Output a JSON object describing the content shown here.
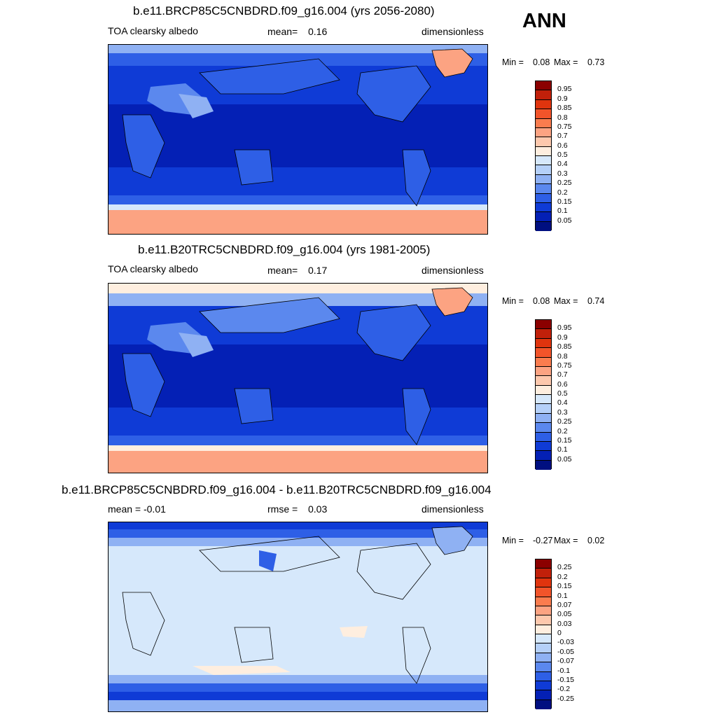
{
  "season": "ANN",
  "panels": [
    {
      "title": "b.e11.BRCP85C5CNBDRD.f09_g16.004 (yrs 2056-2080)",
      "left": "TOA clearsky albedo",
      "center_label": "mean=",
      "center_value": "0.16",
      "right": "dimensionless",
      "min_label": "Min =",
      "min_value": "0.08",
      "max_label": "Max =",
      "max_value": "0.73",
      "colorbar": {
        "labels": [
          "0.95",
          "0.9",
          "0.85",
          "0.8",
          "0.75",
          "0.7",
          "0.6",
          "0.5",
          "0.4",
          "0.3",
          "0.25",
          "0.2",
          "0.15",
          "0.1",
          "0.05"
        ],
        "colors": [
          "#8b0000",
          "#c1200a",
          "#e0340e",
          "#f2542a",
          "#fa7c4e",
          "#fca382",
          "#fdc8ad",
          "#feeedf",
          "#d6e8fb",
          "#b5d0f8",
          "#8fb1f3",
          "#5b88ee",
          "#2e5fe6",
          "#0f3bd6",
          "#0420b5",
          "#000f80"
        ]
      }
    },
    {
      "title": "b.e11.B20TRC5CNBDRD.f09_g16.004 (yrs 1981-2005)",
      "left": "TOA clearsky albedo",
      "center_label": "mean=",
      "center_value": "0.17",
      "right": "dimensionless",
      "min_label": "Min =",
      "min_value": "0.08",
      "max_label": "Max =",
      "max_value": "0.74",
      "colorbar": {
        "labels": [
          "0.95",
          "0.9",
          "0.85",
          "0.8",
          "0.75",
          "0.7",
          "0.6",
          "0.5",
          "0.4",
          "0.3",
          "0.25",
          "0.2",
          "0.15",
          "0.1",
          "0.05"
        ],
        "colors": [
          "#8b0000",
          "#c1200a",
          "#e0340e",
          "#f2542a",
          "#fa7c4e",
          "#fca382",
          "#fdc8ad",
          "#feeedf",
          "#d6e8fb",
          "#b5d0f8",
          "#8fb1f3",
          "#5b88ee",
          "#2e5fe6",
          "#0f3bd6",
          "#0420b5",
          "#000f80"
        ]
      }
    },
    {
      "title": "b.e11.BRCP85C5CNBDRD.f09_g16.004 - b.e11.B20TRC5CNBDRD.f09_g16.004",
      "left": "mean =  -0.01",
      "center_label": "rmse =",
      "center_value": "0.03",
      "right": "dimensionless",
      "min_label": "Min =",
      "min_value": "-0.27",
      "max_label": "Max =",
      "max_value": "0.02",
      "colorbar": {
        "labels": [
          "0.25",
          "0.2",
          "0.15",
          "0.1",
          "0.07",
          "0.05",
          "0.03",
          "0",
          "-0.03",
          "-0.05",
          "-0.07",
          "-0.1",
          "-0.15",
          "-0.2",
          "-0.25"
        ],
        "colors": [
          "#8b0000",
          "#c1200a",
          "#e0340e",
          "#f2542a",
          "#fa7c4e",
          "#fca382",
          "#fdc8ad",
          "#feeedf",
          "#d6e8fb",
          "#b5d0f8",
          "#8fb1f3",
          "#5b88ee",
          "#2e5fe6",
          "#0f3bd6",
          "#0420b5",
          "#000f80"
        ]
      }
    }
  ]
}
